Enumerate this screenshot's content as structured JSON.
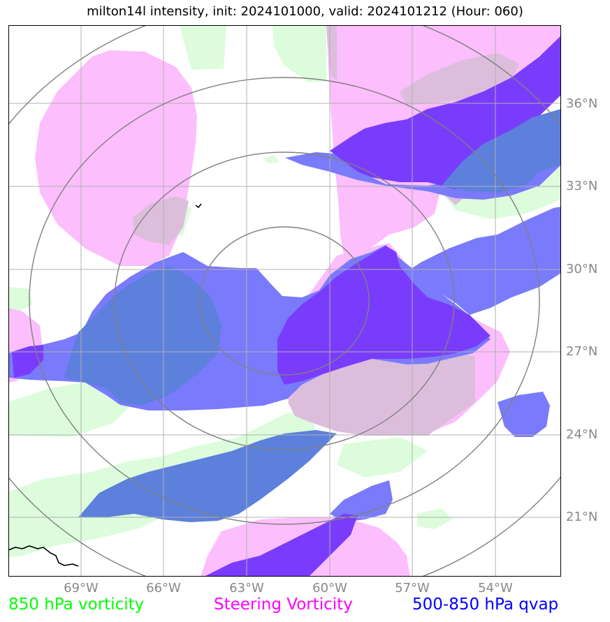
{
  "title": "milton14l intensity, init: 2024101000, valid: 2024101212 (Hour: 060)",
  "lat_labels": [
    "36°N",
    "33°N",
    "30°N",
    "27°N",
    "24°N",
    "21°N"
  ],
  "lon_labels": [
    "69°W",
    "66°W",
    "63°W",
    "60°W",
    "57°W",
    "54°W"
  ],
  "legend": {
    "vorticity_850": {
      "label": "850 hPa vorticity",
      "color": "#00ff00"
    },
    "steering_vorticity": {
      "label": "Steering Vorticity",
      "color": "#ff00ff"
    },
    "qvap_500_850": {
      "label": "500-850 hPa qvap",
      "color": "#0000ff"
    }
  },
  "colors": {
    "vorticity_fill": "#dcfcdc",
    "steering_fill": "#fcbefc",
    "qvap_fill": "#7a7afc",
    "qvap_dark_fill": "#7a3cfc",
    "overlap_fill": "#dcbedc",
    "overlap_blue": "#5c80dc",
    "grid": "#b0b0b0",
    "range_rings": "#808080",
    "coastline": "#000000"
  }
}
